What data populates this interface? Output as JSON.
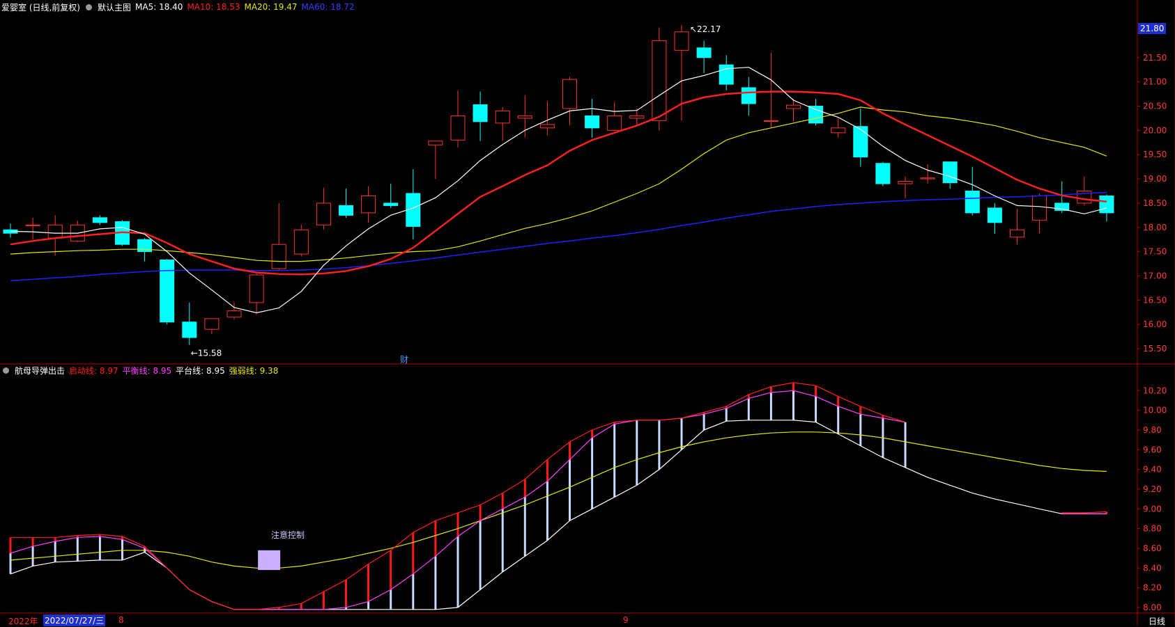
{
  "header": {
    "stock_title": "爱婴室 (日线,前复权)",
    "main_label": "默认主图",
    "ma5": "MA5: 18.40",
    "ma10": "MA10: 18.53",
    "ma20": "MA20: 19.47",
    "ma60": "MA60: 18.72"
  },
  "sub_header": {
    "name": "航母导弹出击",
    "line1": "启动线: 8.97",
    "line2": "平衡线: 8.95",
    "line3": "平台线: 8.95",
    "line4": "强弱线: 9.38"
  },
  "price_badge": "21.80",
  "annotations": {
    "high_label": "22.17",
    "low_label": "15.58",
    "note": "注意控制",
    "cai": "财"
  },
  "footer": {
    "year": "2022年",
    "date": "2022/07/27/三",
    "month_a": "8",
    "month_b": "9",
    "period": "日线"
  },
  "colors": {
    "up": "#ff3232",
    "down": "#00ffff",
    "ma5": "#ffffff",
    "ma10": "#ff2020",
    "ma20": "#e6e600",
    "ma60": "#2020ff",
    "axis": "#b00000"
  },
  "chart_data": [
    {
      "type": "candlestick",
      "y_ticks": [
        15.5,
        16.0,
        16.5,
        17.0,
        17.5,
        18.0,
        18.5,
        19.0,
        19.5,
        20.0,
        20.5,
        21.0,
        21.5
      ],
      "ylim": [
        15.2,
        22.4
      ],
      "candles": [
        [
          17.95,
          17.88,
          18.08,
          17.79
        ],
        [
          18.05,
          18.05,
          18.2,
          17.75
        ],
        [
          17.78,
          18.05,
          18.25,
          17.42
        ],
        [
          17.72,
          18.05,
          18.14,
          17.7
        ],
        [
          18.2,
          18.1,
          18.25,
          18.05
        ],
        [
          18.12,
          17.65,
          18.15,
          17.62
        ],
        [
          17.75,
          17.5,
          17.78,
          17.3
        ],
        [
          17.33,
          16.05,
          17.35,
          16.0
        ],
        [
          16.05,
          15.73,
          16.45,
          15.58
        ],
        [
          15.9,
          16.12,
          16.12,
          15.8
        ],
        [
          16.15,
          16.28,
          16.45,
          16.1
        ],
        [
          16.45,
          17.02,
          17.05,
          16.2
        ],
        [
          17.15,
          17.65,
          18.5,
          17.1
        ],
        [
          17.45,
          17.95,
          18.06,
          17.4
        ],
        [
          18.05,
          18.5,
          18.82,
          17.95
        ],
        [
          18.45,
          18.25,
          18.8,
          18.2
        ],
        [
          18.3,
          18.65,
          18.85,
          18.1
        ],
        [
          18.5,
          18.45,
          18.9,
          18.4
        ],
        [
          18.7,
          18.02,
          19.2,
          17.75
        ],
        [
          19.7,
          19.78,
          19.78,
          19.0
        ],
        [
          19.8,
          20.3,
          20.82,
          19.65
        ],
        [
          20.53,
          20.18,
          20.8,
          19.78
        ],
        [
          20.15,
          20.4,
          20.48,
          19.78
        ],
        [
          20.25,
          20.3,
          20.72,
          19.85
        ],
        [
          20.05,
          20.12,
          20.6,
          19.9
        ],
        [
          20.45,
          21.05,
          21.1,
          20.1
        ],
        [
          20.3,
          20.05,
          20.65,
          19.85
        ],
        [
          20.0,
          20.3,
          20.58,
          19.98
        ],
        [
          20.25,
          20.3,
          20.45,
          20.1
        ],
        [
          20.2,
          21.85,
          22.12,
          20.0
        ],
        [
          21.65,
          22.03,
          22.17,
          20.2
        ],
        [
          21.7,
          21.5,
          21.85,
          21.18
        ],
        [
          21.35,
          20.95,
          21.55,
          20.82
        ],
        [
          20.88,
          20.55,
          21.1,
          20.3
        ],
        [
          20.2,
          20.2,
          21.6,
          20.05
        ],
        [
          20.45,
          20.52,
          20.65,
          20.18
        ],
        [
          20.5,
          20.15,
          20.65,
          20.1
        ],
        [
          19.95,
          20.05,
          20.25,
          19.85
        ],
        [
          20.08,
          19.45,
          20.45,
          19.25
        ],
        [
          19.32,
          18.9,
          19.35,
          18.85
        ],
        [
          18.9,
          18.95,
          19.05,
          18.6
        ],
        [
          19.0,
          19.02,
          19.3,
          18.9
        ],
        [
          19.35,
          18.92,
          19.35,
          18.8
        ],
        [
          18.75,
          18.3,
          19.25,
          18.25
        ],
        [
          18.4,
          18.1,
          18.5,
          17.87
        ],
        [
          17.8,
          17.95,
          18.38,
          17.65
        ],
        [
          18.15,
          18.65,
          18.7,
          17.88
        ],
        [
          18.5,
          18.35,
          18.95,
          18.3
        ],
        [
          18.5,
          18.75,
          19.05,
          18.45
        ],
        [
          18.65,
          18.3,
          18.68,
          18.12
        ]
      ],
      "ma5": [
        17.92,
        17.91,
        17.88,
        17.88,
        17.97,
        18.0,
        17.86,
        17.5,
        17.06,
        16.71,
        16.35,
        16.24,
        16.34,
        16.68,
        17.22,
        17.62,
        17.97,
        18.25,
        18.4,
        18.61,
        18.96,
        19.38,
        19.71,
        20.0,
        20.21,
        20.4,
        20.45,
        20.39,
        20.41,
        20.72,
        21.02,
        21.13,
        21.27,
        21.3,
        21.04,
        20.62,
        20.43,
        20.27,
        20.02,
        19.67,
        19.38,
        19.18,
        19.05,
        18.88,
        18.65,
        18.45,
        18.43,
        18.38,
        18.28,
        18.4
      ],
      "ma10": [
        17.65,
        17.72,
        17.78,
        17.82,
        17.86,
        17.9,
        17.88,
        17.68,
        17.45,
        17.3,
        17.15,
        17.07,
        17.04,
        17.03,
        17.05,
        17.1,
        17.2,
        17.35,
        17.58,
        17.93,
        18.28,
        18.63,
        18.85,
        19.08,
        19.28,
        19.58,
        19.8,
        19.95,
        20.1,
        20.28,
        20.55,
        20.68,
        20.75,
        20.78,
        20.8,
        20.8,
        20.78,
        20.75,
        20.62,
        20.35,
        20.12,
        19.9,
        19.68,
        19.46,
        19.22,
        18.98,
        18.8,
        18.66,
        18.58,
        18.53
      ],
      "ma20": [
        17.45,
        17.48,
        17.5,
        17.52,
        17.53,
        17.55,
        17.55,
        17.52,
        17.48,
        17.44,
        17.38,
        17.32,
        17.3,
        17.3,
        17.33,
        17.37,
        17.42,
        17.47,
        17.5,
        17.52,
        17.6,
        17.72,
        17.85,
        17.98,
        18.08,
        18.2,
        18.34,
        18.52,
        18.7,
        18.9,
        19.2,
        19.52,
        19.8,
        19.95,
        20.05,
        20.15,
        20.25,
        20.35,
        20.48,
        20.42,
        20.38,
        20.3,
        20.25,
        20.18,
        20.1,
        19.98,
        19.85,
        19.75,
        19.65,
        19.47
      ],
      "ma60": [
        16.9,
        16.93,
        16.96,
        16.99,
        17.03,
        17.06,
        17.09,
        17.11,
        17.12,
        17.12,
        17.12,
        17.11,
        17.11,
        17.12,
        17.14,
        17.17,
        17.21,
        17.26,
        17.31,
        17.37,
        17.43,
        17.49,
        17.55,
        17.61,
        17.67,
        17.72,
        17.78,
        17.83,
        17.89,
        17.96,
        18.04,
        18.11,
        18.19,
        18.26,
        18.33,
        18.38,
        18.43,
        18.47,
        18.5,
        18.53,
        18.55,
        18.57,
        18.58,
        18.6,
        18.62,
        18.63,
        18.65,
        18.67,
        18.7,
        18.72
      ]
    },
    {
      "type": "line",
      "name": "航母导弹出击",
      "y_ticks": [
        8.0,
        8.2,
        8.4,
        8.6,
        8.8,
        9.0,
        9.2,
        9.4,
        9.6,
        9.8,
        10.0,
        10.2
      ],
      "ylim": [
        7.95,
        10.35
      ],
      "series": [
        {
          "name": "启动线",
          "values": [
            8.71,
            8.71,
            8.71,
            8.73,
            8.74,
            8.72,
            8.62,
            8.4,
            8.18,
            8.06,
            7.98,
            7.98,
            8.0,
            8.04,
            8.16,
            8.28,
            8.44,
            8.58,
            8.76,
            8.88,
            8.96,
            9.04,
            9.16,
            9.3,
            9.5,
            9.68,
            9.8,
            9.88,
            9.9,
            9.9,
            9.92,
            9.98,
            10.04,
            10.16,
            10.24,
            10.28,
            10.25,
            10.14,
            10.04,
            9.95,
            9.88,
            null,
            null,
            null,
            null,
            null,
            null,
            8.96,
            8.96,
            8.97
          ]
        },
        {
          "name": "平衡线",
          "values": [
            8.55,
            8.62,
            8.67,
            8.71,
            8.72,
            8.69,
            8.6,
            8.4,
            8.18,
            8.06,
            7.98,
            7.98,
            7.98,
            7.98,
            7.98,
            8.0,
            8.06,
            8.18,
            8.34,
            8.52,
            8.72,
            8.88,
            9.0,
            9.12,
            9.28,
            9.5,
            9.72,
            9.86,
            9.9,
            9.9,
            9.92,
            9.96,
            10.02,
            10.12,
            10.18,
            10.2,
            10.14,
            10.04,
            9.96,
            9.92,
            9.88,
            null,
            null,
            null,
            null,
            null,
            null,
            8.95,
            8.95,
            8.95
          ]
        },
        {
          "name": "平台线",
          "values": [
            8.34,
            8.42,
            8.46,
            8.47,
            8.48,
            8.48,
            8.56,
            8.4,
            8.18,
            8.06,
            7.98,
            7.98,
            7.98,
            7.98,
            7.98,
            7.98,
            7.98,
            7.98,
            7.98,
            7.98,
            8.0,
            8.18,
            8.36,
            8.52,
            8.68,
            8.88,
            9.0,
            9.12,
            9.24,
            9.4,
            9.6,
            9.8,
            9.89,
            9.9,
            9.9,
            9.9,
            9.88,
            9.76,
            9.64,
            9.52,
            9.42,
            9.32,
            9.24,
            9.16,
            9.1,
            9.05,
            9.0,
            8.95,
            8.95,
            8.95
          ]
        },
        {
          "name": "强弱线",
          "values": [
            8.48,
            8.5,
            8.52,
            8.54,
            8.56,
            8.58,
            8.58,
            8.56,
            8.52,
            8.46,
            8.42,
            8.4,
            8.4,
            8.42,
            8.46,
            8.5,
            8.55,
            8.6,
            8.66,
            8.73,
            8.8,
            8.88,
            8.96,
            9.04,
            9.13,
            9.22,
            9.32,
            9.42,
            9.5,
            9.57,
            9.63,
            9.68,
            9.72,
            9.75,
            9.77,
            9.78,
            9.78,
            9.77,
            9.75,
            9.72,
            9.68,
            9.64,
            9.6,
            9.56,
            9.52,
            9.48,
            9.44,
            9.41,
            9.39,
            9.38
          ]
        }
      ]
    }
  ]
}
